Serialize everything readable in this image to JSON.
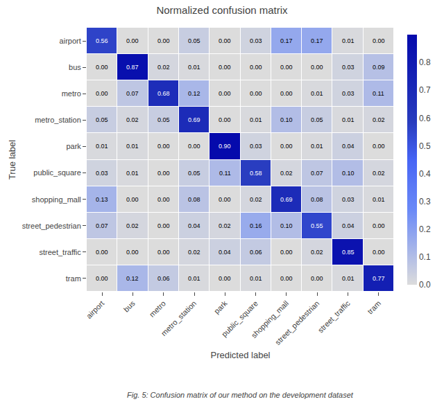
{
  "chart_data": {
    "type": "heatmap",
    "title": "Normalized confusion matrix",
    "xlabel": "Predicted label",
    "ylabel": "True label",
    "categories": [
      "airport",
      "bus",
      "metro",
      "metro_station",
      "park",
      "public_square",
      "shopping_mall",
      "street_pedestrian",
      "street_traffic",
      "tram"
    ],
    "values": [
      [
        0.56,
        0.0,
        0.0,
        0.05,
        0.0,
        0.03,
        0.17,
        0.17,
        0.01,
        0.0
      ],
      [
        0.0,
        0.87,
        0.02,
        0.01,
        0.0,
        0.0,
        0.0,
        0.0,
        0.03,
        0.09
      ],
      [
        0.0,
        0.07,
        0.68,
        0.12,
        0.0,
        0.0,
        0.0,
        0.01,
        0.03,
        0.11
      ],
      [
        0.05,
        0.02,
        0.05,
        0.69,
        0.0,
        0.01,
        0.1,
        0.05,
        0.01,
        0.02
      ],
      [
        0.01,
        0.01,
        0.0,
        0.0,
        0.9,
        0.03,
        0.0,
        0.01,
        0.04,
        0.0
      ],
      [
        0.03,
        0.01,
        0.0,
        0.05,
        0.11,
        0.58,
        0.02,
        0.07,
        0.1,
        0.02
      ],
      [
        0.13,
        0.0,
        0.0,
        0.08,
        0.0,
        0.02,
        0.69,
        0.08,
        0.03,
        0.01
      ],
      [
        0.07,
        0.02,
        0.0,
        0.04,
        0.02,
        0.16,
        0.1,
        0.55,
        0.04,
        0.0
      ],
      [
        0.0,
        0.0,
        0.0,
        0.02,
        0.04,
        0.06,
        0.0,
        0.02,
        0.85,
        0.0
      ],
      [
        0.0,
        0.12,
        0.06,
        0.01,
        0.0,
        0.01,
        0.0,
        0.0,
        0.01,
        0.77
      ]
    ],
    "value_labels": [
      [
        "0.56",
        "0.00",
        "0.00",
        "0.05",
        "0.00",
        "0.03",
        "0.17",
        "0.17",
        "0.01",
        "0.00"
      ],
      [
        "0.00",
        "0.87",
        "0.02",
        "0.01",
        "0.00",
        "0.00",
        "0.00",
        "0.00",
        "0.03",
        "0.09"
      ],
      [
        "0.00",
        "0.07",
        "0.68",
        "0.12",
        "0.00",
        "0.00",
        "0.00",
        "0.01",
        "0.03",
        "0.11"
      ],
      [
        "0.05",
        "0.02",
        "0.05",
        "0.69",
        "0.00",
        "0.01",
        "0.10",
        "0.05",
        "0.01",
        "0.02"
      ],
      [
        "0.01",
        "0.01",
        "0.00",
        "0.00",
        "0.90",
        "0.03",
        "0.00",
        "0.01",
        "0.04",
        "0.00"
      ],
      [
        "0.03",
        "0.01",
        "0.00",
        "0.05",
        "0.11",
        "0.58",
        "0.02",
        "0.07",
        "0.10",
        "0.02"
      ],
      [
        "0.13",
        "0.00",
        "0.00",
        "0.08",
        "0.00",
        "0.02",
        "0.69",
        "0.08",
        "0.03",
        "0.01"
      ],
      [
        "0.07",
        "0.02",
        "0.00",
        "0.04",
        "0.02",
        "0.16",
        "0.10",
        "0.55",
        "0.04",
        "0.00"
      ],
      [
        "0.00",
        "0.00",
        "0.00",
        "0.02",
        "0.04",
        "0.06",
        "0.00",
        "0.02",
        "0.85",
        "0.00"
      ],
      [
        "0.00",
        "0.12",
        "0.06",
        "0.01",
        "0.00",
        "0.01",
        "0.00",
        "0.00",
        "0.01",
        "0.77"
      ]
    ],
    "color": "Blues",
    "zlim": [
      0.0,
      0.9
    ],
    "zticks": [
      {
        "value": 0,
        "label": "0.0"
      },
      0.1,
      0.2,
      0.3,
      0.4,
      0.5,
      0.6,
      0.7,
      0.8
    ],
    "data_labels": true,
    "caption": "Fig. 5: Confusion matrix of our method on the development dataset"
  }
}
